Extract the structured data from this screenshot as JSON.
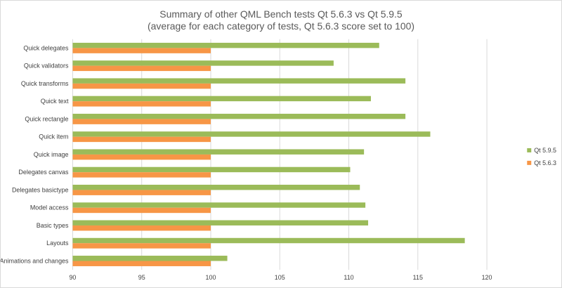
{
  "chart_data": {
    "type": "bar",
    "orientation": "horizontal",
    "title": "Summary of other QML  Bench tests Qt 5.6.3 vs Qt 5.9.5",
    "subtitle": "(average for each category of tests, Qt 5.6.3 score set to 100)",
    "categories": [
      "Quick delegates",
      "Quick validators",
      "Quick transforms",
      "Quick text",
      "Quick rectangle",
      "Quick item",
      "Quick image",
      "Delegates canvas",
      "Delegates basictype",
      "Model access",
      "Basic types",
      "Layouts",
      "Animations and changes"
    ],
    "series": [
      {
        "name": "Qt 5.9.5",
        "color": "#9bbb59",
        "values": [
          112.2,
          108.9,
          114.1,
          111.6,
          114.1,
          115.9,
          111.1,
          110.1,
          110.8,
          111.2,
          111.4,
          118.4,
          101.2
        ]
      },
      {
        "name": "Qt 5.6.3",
        "color": "#f79646",
        "values": [
          100,
          100,
          100,
          100,
          100,
          100,
          100,
          100,
          100,
          100,
          100,
          100,
          100
        ]
      }
    ],
    "xlim": [
      90,
      122
    ],
    "xticks": [
      "90",
      "95",
      "100",
      "105",
      "110",
      "115",
      "120"
    ],
    "xtick_values": [
      90,
      95,
      100,
      105,
      110,
      115,
      120
    ],
    "grid": true,
    "legend_position": "right"
  }
}
